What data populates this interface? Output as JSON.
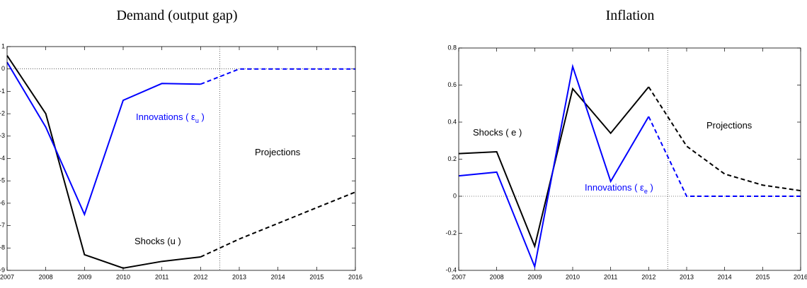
{
  "chart_data": [
    {
      "type": "line",
      "title": "Demand (output gap)",
      "x": [
        2007,
        2008,
        2009,
        2010,
        2011,
        2012,
        2013,
        2014,
        2015,
        2016
      ],
      "xlim": [
        2007,
        2016
      ],
      "xticks": [
        2007,
        2008,
        2009,
        2010,
        2011,
        2012,
        2013,
        2014,
        2015,
        2016
      ],
      "ylim": [
        -9,
        1
      ],
      "yticks": [
        -9,
        -8,
        -7,
        -6,
        -5,
        -4,
        -3,
        -2,
        -1,
        0,
        1
      ],
      "hline": 0,
      "vline": 2012.5,
      "series": [
        {
          "color": "#000000",
          "values": [
            0.6,
            -2.0,
            -8.3,
            -8.9,
            -8.6,
            -8.4,
            -7.6,
            -6.9,
            -6.2,
            -5.5
          ]
        },
        {
          "color": "#0000ff",
          "values": [
            0.3,
            -2.6,
            -6.5,
            -1.4,
            -0.65,
            -0.68,
            0,
            0,
            0,
            0
          ]
        }
      ],
      "annotations": [
        {
          "text": "Innovations ( ε",
          "sub": "u",
          "tail": " )",
          "color": "#0000ff"
        },
        {
          "text": "Projections",
          "color": "#000000"
        },
        {
          "text": "Shocks (u )",
          "color": "#000000"
        }
      ]
    },
    {
      "type": "line",
      "title": "Inflation",
      "x": [
        2007,
        2008,
        2009,
        2010,
        2011,
        2012,
        2013,
        2014,
        2015,
        2016
      ],
      "xlim": [
        2007,
        2016
      ],
      "xticks": [
        2007,
        2008,
        2009,
        2010,
        2011,
        2012,
        2013,
        2014,
        2015,
        2016
      ],
      "ylim": [
        -0.4,
        0.8
      ],
      "yticks": [
        -0.4,
        -0.2,
        0,
        0.2,
        0.4,
        0.6,
        0.8
      ],
      "hline": 0,
      "vline": 2012.5,
      "series": [
        {
          "color": "#000000",
          "values": [
            0.23,
            0.24,
            -0.27,
            0.58,
            0.34,
            0.59,
            0.27,
            0.12,
            0.06,
            0.03
          ]
        },
        {
          "color": "#0000ff",
          "values": [
            0.11,
            0.13,
            -0.38,
            0.7,
            0.08,
            0.43,
            0,
            0,
            0,
            0
          ]
        }
      ],
      "annotations": [
        {
          "text": "Shocks ( e )",
          "color": "#000000"
        },
        {
          "text": "Projections",
          "color": "#000000"
        },
        {
          "text": "Innovations ( ε",
          "sub": "e",
          "tail": " )",
          "color": "#0000ff"
        }
      ]
    }
  ]
}
